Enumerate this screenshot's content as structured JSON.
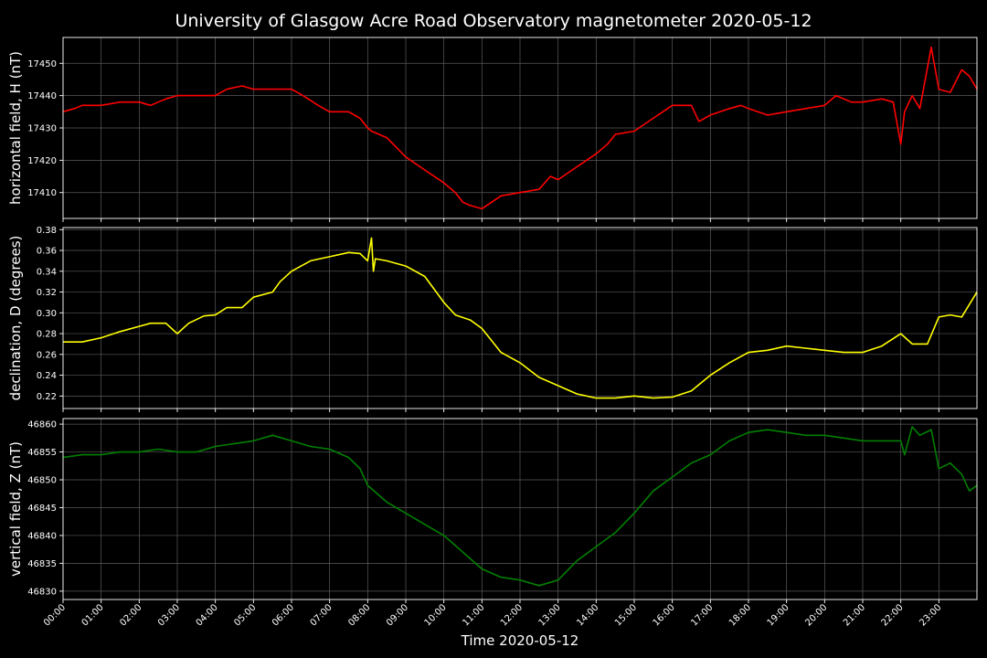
{
  "chart_data": {
    "type": "line",
    "title": "University of Glasgow Acre Road Observatory magnetometer 2020-05-12",
    "xlabel": "Time 2020-05-12",
    "x_ticks": [
      "00:00",
      "01:00",
      "02:00",
      "03:00",
      "04:00",
      "05:00",
      "06:00",
      "07:00",
      "08:00",
      "09:00",
      "10:00",
      "11:00",
      "12:00",
      "13:00",
      "14:00",
      "15:00",
      "16:00",
      "17:00",
      "18:00",
      "19:00",
      "20:00",
      "21:00",
      "22:00",
      "23:00"
    ],
    "xlim_hours": [
      0,
      24
    ],
    "grid": true,
    "panels": [
      {
        "name": "horizontal",
        "ylabel": "horizontal field, H (nT)",
        "color": "#ff0000",
        "ylim": [
          17402,
          17458
        ],
        "yticks": [
          17410,
          17420,
          17430,
          17440,
          17450
        ],
        "x": [
          0,
          0.3,
          0.5,
          1,
          1.5,
          2,
          2.3,
          2.7,
          3,
          3.5,
          4,
          4.3,
          4.7,
          5,
          5.5,
          6,
          6.3,
          6.7,
          7,
          7.5,
          7.8,
          8,
          8.1,
          8.5,
          9,
          9.5,
          10,
          10.3,
          10.5,
          10.7,
          11,
          11.5,
          12,
          12.5,
          12.8,
          13,
          13.5,
          14,
          14.3,
          14.5,
          15,
          15.5,
          16,
          16.5,
          16.7,
          17,
          17.5,
          17.8,
          18,
          18.5,
          19,
          19.5,
          20,
          20.3,
          20.7,
          21,
          21.5,
          21.8,
          22,
          22.1,
          22.3,
          22.5,
          22.8,
          23,
          23.3,
          23.6,
          23.8,
          24
        ],
        "y": [
          17435,
          17436,
          17437,
          17437,
          17438,
          17438,
          17437,
          17439,
          17440,
          17440,
          17440,
          17442,
          17443,
          17442,
          17442,
          17442,
          17440,
          17437,
          17435,
          17435,
          17433,
          17430,
          17429,
          17427,
          17421,
          17417,
          17413,
          17410,
          17407,
          17406,
          17405,
          17409,
          17410,
          17411,
          17415,
          17414,
          17418,
          17422,
          17425,
          17428,
          17429,
          17433,
          17437,
          17437,
          17432,
          17434,
          17436,
          17437,
          17436,
          17434,
          17435,
          17436,
          17437,
          17440,
          17438,
          17438,
          17439,
          17438,
          17425,
          17435,
          17440,
          17436,
          17455,
          17442,
          17441,
          17448,
          17446,
          17442
        ]
      },
      {
        "name": "declination",
        "ylabel": "declination, D (degrees)",
        "color": "#ffff00",
        "ylim": [
          0.208,
          0.382
        ],
        "yticks": [
          0.22,
          0.24,
          0.26,
          0.28,
          0.3,
          0.32,
          0.34,
          0.36,
          0.38
        ],
        "x": [
          0,
          0.5,
          1,
          1.5,
          2,
          2.3,
          2.7,
          3,
          3.3,
          3.7,
          4,
          4.3,
          4.7,
          5,
          5.5,
          5.7,
          6,
          6.5,
          7,
          7.5,
          7.8,
          8,
          8.1,
          8.15,
          8.2,
          8.5,
          9,
          9.5,
          10,
          10.3,
          10.7,
          11,
          11.5,
          12,
          12.5,
          13,
          13.5,
          14,
          14.5,
          15,
          15.5,
          16,
          16.5,
          17,
          17.5,
          18,
          18.5,
          19,
          19.5,
          20,
          20.5,
          21,
          21.5,
          22,
          22.3,
          22.7,
          23,
          23.3,
          23.6,
          24
        ],
        "y": [
          0.272,
          0.272,
          0.276,
          0.282,
          0.287,
          0.29,
          0.29,
          0.28,
          0.29,
          0.297,
          0.298,
          0.305,
          0.305,
          0.315,
          0.32,
          0.33,
          0.34,
          0.35,
          0.354,
          0.358,
          0.357,
          0.35,
          0.372,
          0.34,
          0.352,
          0.35,
          0.345,
          0.335,
          0.31,
          0.298,
          0.293,
          0.285,
          0.262,
          0.252,
          0.238,
          0.23,
          0.222,
          0.218,
          0.218,
          0.22,
          0.218,
          0.219,
          0.225,
          0.24,
          0.252,
          0.262,
          0.264,
          0.268,
          0.266,
          0.264,
          0.262,
          0.262,
          0.268,
          0.28,
          0.27,
          0.27,
          0.296,
          0.298,
          0.296,
          0.32
        ]
      },
      {
        "name": "vertical",
        "ylabel": "vertical field, Z (nT)",
        "color": "#008000",
        "ylim": [
          46828.5,
          46861
        ],
        "yticks": [
          46830,
          46835,
          46840,
          46845,
          46850,
          46855,
          46860
        ],
        "x": [
          0,
          0.5,
          1,
          1.5,
          2,
          2.5,
          3,
          3.5,
          4,
          4.5,
          5,
          5.5,
          6,
          6.5,
          7,
          7.5,
          7.8,
          8,
          8.5,
          9,
          9.5,
          10,
          10.5,
          11,
          11.5,
          12,
          12.5,
          13,
          13.5,
          14,
          14.5,
          15,
          15.5,
          16,
          16.5,
          17,
          17.5,
          18,
          18.5,
          19,
          19.5,
          20,
          20.5,
          21,
          21.5,
          22,
          22.1,
          22.3,
          22.5,
          22.8,
          23,
          23.3,
          23.6,
          23.8,
          24
        ],
        "y": [
          46854,
          46854.5,
          46854.5,
          46855,
          46855,
          46855.5,
          46855,
          46855,
          46856,
          46856.5,
          46857,
          46858,
          46857,
          46856,
          46855.5,
          46854,
          46852,
          46849,
          46846,
          46844,
          46842,
          46840,
          46837,
          46834,
          46832.5,
          46832,
          46831,
          46832,
          46835.5,
          46838,
          46840.5,
          46844,
          46848,
          46850.5,
          46853,
          46854.5,
          46857,
          46858.5,
          46859,
          46858.5,
          46858,
          46858,
          46857.5,
          46857,
          46857,
          46857,
          46854.5,
          46859.5,
          46858,
          46859,
          46852,
          46853,
          46851,
          46848,
          46849
        ]
      }
    ]
  }
}
